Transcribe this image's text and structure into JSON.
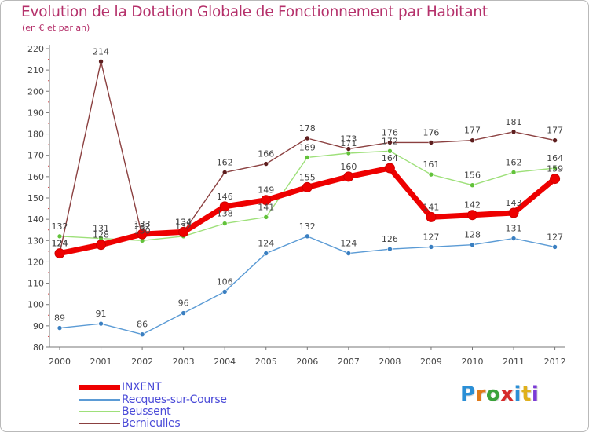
{
  "header": {
    "title": "Evolution de la Dotation Globale de Fonctionnement par Habitant",
    "subtitle": "(en € et par an)"
  },
  "logo": {
    "text": "Proxiti",
    "letter_colors": [
      "#2a8fd6",
      "#e07a1a",
      "#3aa23a",
      "#d62a2a",
      "#2a8fd6",
      "#e0b01a",
      "#7a3ad6"
    ]
  },
  "chart_data": {
    "type": "line",
    "title": "Evolution de la Dotation Globale de Fonctionnement par Habitant",
    "subtitle": "(en € et par an)",
    "xlabel": "",
    "ylabel": "",
    "x": [
      "2000",
      "2001",
      "2002",
      "2003",
      "2004",
      "2005",
      "2006",
      "2007",
      "2008",
      "2009",
      "2010",
      "2011",
      "2012"
    ],
    "ylim": [
      80,
      220
    ],
    "yticks": [
      80,
      90,
      100,
      110,
      120,
      130,
      140,
      150,
      160,
      170,
      180,
      190,
      200,
      210,
      220
    ],
    "grid": false,
    "legend_position": "bottom-left",
    "series": [
      {
        "name": "Recques-sur-Course",
        "color": "#5b9bd5",
        "marker_color": "#3a7fc1",
        "width": 1.4,
        "values": [
          89,
          91,
          86,
          96,
          106,
          124,
          132,
          124,
          126,
          127,
          128,
          131,
          127
        ],
        "labels": [
          "89",
          "91",
          "86",
          "96",
          "106",
          "124",
          "132",
          "124",
          "126",
          "127",
          "128",
          "131",
          "127"
        ]
      },
      {
        "name": "Beussent",
        "color": "#9ee07a",
        "marker_color": "#62c23a",
        "width": 1.4,
        "values": [
          132,
          131,
          130,
          132,
          138,
          141,
          169,
          171,
          172,
          161,
          156,
          162,
          164
        ],
        "labels": [
          "132",
          "131",
          "130",
          "132",
          "138",
          "141",
          "169",
          "171",
          "172",
          "161",
          "156",
          "162",
          "164"
        ]
      },
      {
        "name": "Bernieulles",
        "color": "#8b4040",
        "marker_color": "#5e1e1e",
        "width": 1.4,
        "values": [
          124,
          214,
          132,
          134,
          162,
          166,
          178,
          173,
          176,
          176,
          177,
          181,
          177
        ],
        "labels": [
          "124",
          "214",
          "132",
          "134",
          "162",
          "166",
          "178",
          "173",
          "176",
          "176",
          "177",
          "181",
          "177"
        ]
      },
      {
        "name": "INXENT",
        "color": "#ee0000",
        "marker_color": "#ee0000",
        "width": 7,
        "values": [
          124,
          128,
          133,
          134,
          146,
          149,
          155,
          160,
          164,
          141,
          142,
          143,
          159
        ],
        "labels": [
          "124",
          "128",
          "133",
          "134",
          "146",
          "149",
          "155",
          "160",
          "164",
          "141",
          "142",
          "143",
          "159"
        ]
      }
    ]
  },
  "legend": [
    {
      "label": "INXENT",
      "color": "#ee0000",
      "text_color": "#4b4bd8",
      "thickness": 7
    },
    {
      "label": "Recques-sur-Course",
      "color": "#5b9bd5",
      "text_color": "#4b4bd8",
      "thickness": 2
    },
    {
      "label": "Beussent",
      "color": "#9ee07a",
      "text_color": "#4b4bd8",
      "thickness": 2
    },
    {
      "label": "Bernieulles",
      "color": "#8b4040",
      "text_color": "#4b4bd8",
      "thickness": 2
    }
  ]
}
